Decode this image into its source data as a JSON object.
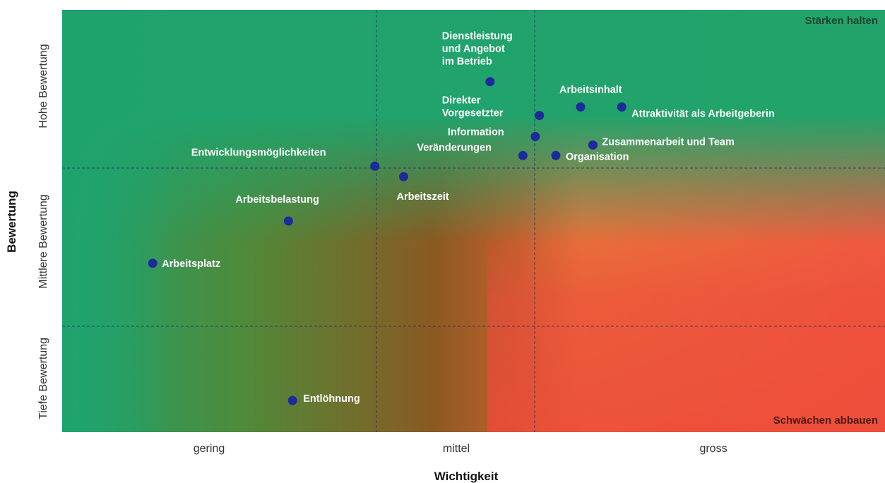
{
  "chart_data": {
    "type": "scatter",
    "title": "",
    "xlabel": "Wichtigkeit",
    "ylabel": "Bewertung",
    "xlim": [
      0,
      10
    ],
    "ylim": [
      0,
      10
    ],
    "x_categories": [
      "gering",
      "mittel",
      "gross"
    ],
    "y_categories": [
      "Tiefe Bewertung",
      "Mittlere Bewertung",
      "Hohe Bewertung"
    ],
    "quadrant_labels": {
      "top_right": "Stärken halten",
      "bottom_right": "Schwächen abbauen"
    },
    "grid": true,
    "colors": {
      "green": "#1fa36d",
      "brown": "#8a5a22",
      "orange": "#e8723a",
      "red": "#ee4a3a",
      "point": "#1d2a9a",
      "label": "#ffffff",
      "corner_top": "#17442e",
      "corner_bottom": "#4a1a10"
    },
    "points": [
      {
        "label": "Dienstleistung und Angebot im Betrieb",
        "x": 5.2,
        "y": 8.3
      },
      {
        "label": "Arbeitsinhalt",
        "x": 6.3,
        "y": 7.7
      },
      {
        "label": "Attraktivität als Arbeitgeberin",
        "x": 6.8,
        "y": 7.7
      },
      {
        "label": "Direkter Vorgesetzter",
        "x": 5.8,
        "y": 7.5
      },
      {
        "label": "Information",
        "x": 5.75,
        "y": 7.0
      },
      {
        "label": "Zusammenarbeit und Team",
        "x": 6.45,
        "y": 6.8
      },
      {
        "label": "Veränderungen",
        "x": 5.6,
        "y": 6.55
      },
      {
        "label": "Organisation",
        "x": 6.0,
        "y": 6.55
      },
      {
        "label": "Entwicklungsmöglichkeiten",
        "x": 3.8,
        "y": 6.3
      },
      {
        "label": "Arbeitszeit",
        "x": 4.15,
        "y": 6.05
      },
      {
        "label": "Arbeitsbelastung",
        "x": 2.75,
        "y": 5.0
      },
      {
        "label": "Arbeitsplatz",
        "x": 1.1,
        "y": 4.0
      },
      {
        "label": "Entlöhnung",
        "x": 2.8,
        "y": 0.75
      }
    ]
  }
}
